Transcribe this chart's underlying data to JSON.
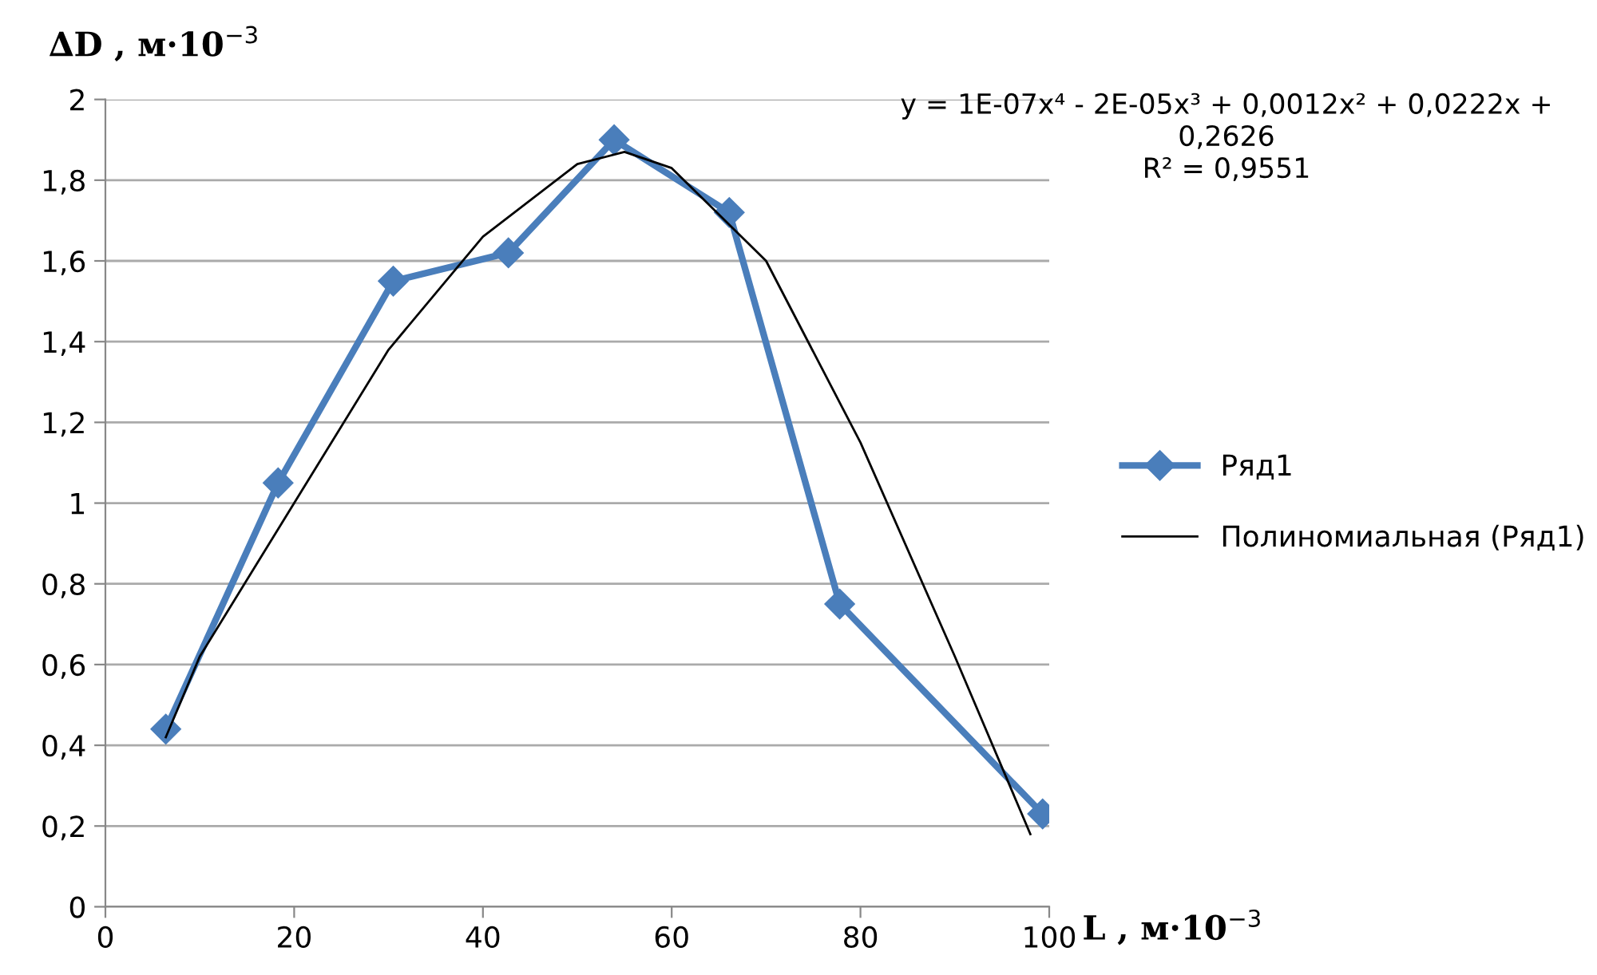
{
  "chart_data": {
    "type": "line",
    "xlabel": "L , м·10$^{−3}$",
    "ylabel": "∆D , м·10$^{−3}$",
    "series": [
      {
        "name": "Ряд1",
        "color": "#4a7ebb",
        "marker": "diamond",
        "x": [
          6.4,
          18.3,
          30.5,
          42.7,
          53.9,
          66.1,
          77.8,
          99.3
        ],
        "values": [
          0.44,
          1.05,
          1.55,
          1.62,
          1.9,
          1.72,
          0.75,
          0.23
        ]
      },
      {
        "name": "Полиномиальная (Ряд1)",
        "color": "#000000",
        "marker": "none",
        "x": [
          6.4,
          10,
          20,
          30,
          40,
          50,
          55,
          60,
          70,
          80,
          90,
          98
        ],
        "values": [
          0.42,
          0.62,
          1.0,
          1.38,
          1.66,
          1.84,
          1.87,
          1.83,
          1.6,
          1.15,
          0.62,
          0.18
        ]
      }
    ],
    "annotations": [
      "y = 1E-07x⁴ - 2E-05x³ + 0,0012x² + 0,0222x +\n0,2626\nR² = 0,9551"
    ],
    "xlim": [
      0,
      100
    ],
    "xticks": [
      0,
      20,
      40,
      60,
      80,
      100
    ],
    "ylim": [
      0,
      2
    ],
    "yticks": [
      0,
      {
        "value": 0.2,
        "label": "0,2"
      },
      {
        "value": 0.4,
        "label": "0,4"
      },
      {
        "value": 0.6,
        "label": "0,6"
      },
      {
        "value": 0.8,
        "label": "0,8"
      },
      1,
      {
        "value": 1.2,
        "label": "1,2"
      },
      {
        "value": 1.4,
        "label": "1,4"
      },
      {
        "value": 1.6,
        "label": "1,6"
      },
      {
        "value": 1.8,
        "label": "1,8"
      },
      2
    ],
    "grid": "y",
    "legend": "right",
    "line_style": "solid"
  }
}
